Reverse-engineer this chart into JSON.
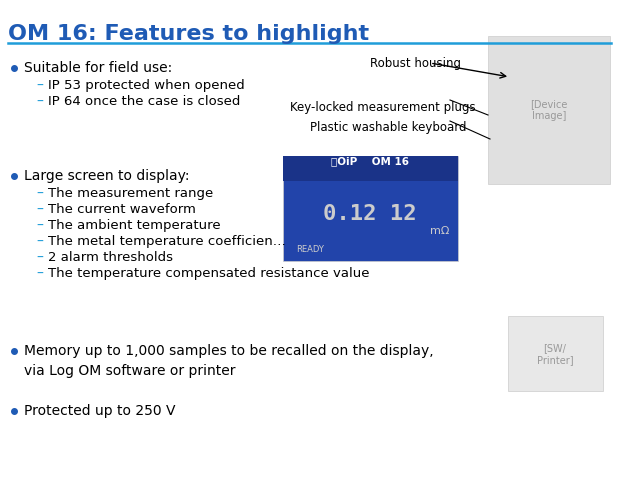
{
  "title": "OM 16: Features to highlight",
  "title_color": "#1F5BB5",
  "title_fontsize": 16,
  "separator_color": "#1F9DD9",
  "background_color": "#FFFFFF",
  "bullet_color": "#1F5BB5",
  "dash_color": "#1F9DD9",
  "text_color": "#000000",
  "bullet1_header": "Suitable for field use:",
  "bullet1_subs": [
    "IP 53 protected when opened",
    "IP 64 once the case is closed"
  ],
  "bullet2_header": "Large screen to display:",
  "bullet2_subs": [
    "The measurement range",
    "The current waveform",
    "The ambient temperature",
    "The metal temperature coefficien…",
    "2 alarm thresholds",
    "The temperature compensated resistance value"
  ],
  "bullet3_text": "Memory up to 1,000 samples to be recalled on the display,\nvia Log OM software or printer",
  "bullet4_text": "Protected up to 250 V",
  "annotation1": "Robust housing",
  "annotation2": "Key-locked measurement plugs",
  "annotation3": "Plastic washable keyboard",
  "font_size_main": 10,
  "font_size_sub": 9.5
}
